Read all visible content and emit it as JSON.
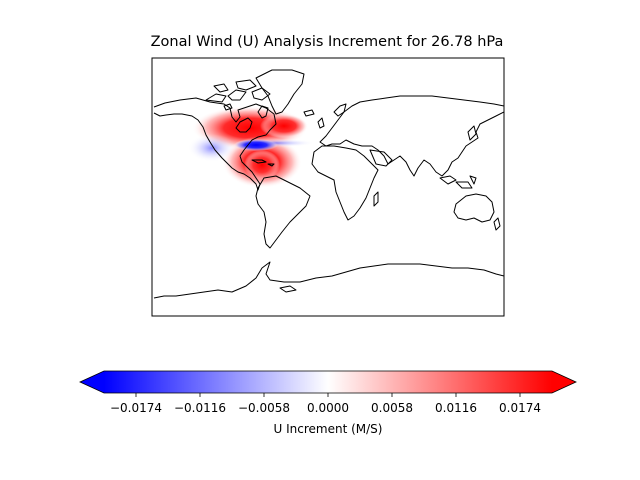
{
  "title": "Zonal Wind (U) Analysis Increment for 26.78 hPa",
  "colorbar": {
    "label": "U Increment (M/S)",
    "ticks": [
      "−0.0174",
      "−0.0116",
      "−0.0058",
      "0.0000",
      "0.0058",
      "0.0116",
      "0.0174"
    ],
    "tick_values": [
      -0.0174,
      -0.0116,
      -0.0058,
      0.0,
      0.0058,
      0.0116,
      0.0174
    ],
    "vmin": -0.0203,
    "vmax": 0.0203,
    "colormap": "bwr",
    "colors": {
      "low": "#0000ff",
      "mid": "#ffffff",
      "high": "#ff0000"
    },
    "extend": "both"
  },
  "map": {
    "projection": "PlateCarree",
    "extent_lon": [
      -180,
      180
    ],
    "extent_lat": [
      -90,
      90
    ],
    "increment_features": [
      {
        "region": "eastern Canada / Hudson Bay",
        "lon": -72,
        "lat": 57,
        "sign": "positive"
      },
      {
        "region": "central America / Gulf of Mexico",
        "lon": -80,
        "lat": 20,
        "sign": "positive"
      },
      {
        "region": "northeastern United States",
        "lon": -80,
        "lat": 40,
        "sign": "negative"
      },
      {
        "region": "North Atlantic band",
        "lon": -55,
        "lat": 39,
        "sign": "negative"
      },
      {
        "region": "western United States",
        "lon": -118,
        "lat": 42,
        "sign": "negative"
      }
    ]
  }
}
